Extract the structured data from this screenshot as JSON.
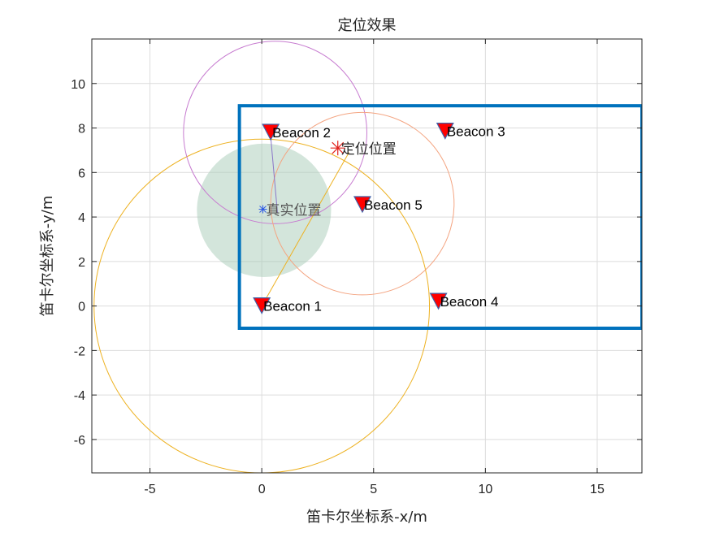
{
  "chart_data": {
    "type": "scatter",
    "title": "定位效果",
    "xlabel": "笛卡尔坐标系-x/m",
    "ylabel": "笛卡尔坐标系-y/m",
    "xlim": [
      -7.6,
      17
    ],
    "ylim": [
      -7.5,
      12
    ],
    "xticks": [
      -5,
      0,
      5,
      10,
      15
    ],
    "yticks": [
      -6,
      -4,
      -2,
      0,
      2,
      4,
      6,
      8,
      10
    ],
    "grid": true,
    "beacons": [
      {
        "label": "Beacon 1",
        "x": 0,
        "y": 0
      },
      {
        "label": "Beacon 2",
        "x": 0.4,
        "y": 7.8
      },
      {
        "label": "Beacon 3",
        "x": 8.2,
        "y": 7.85
      },
      {
        "label": "Beacon 4",
        "x": 7.9,
        "y": 0.2
      },
      {
        "label": "Beacon 5",
        "x": 4.5,
        "y": 4.55
      }
    ],
    "circles": [
      {
        "cx": 0,
        "cy": 0,
        "r": 7.5,
        "color": "#EDB120"
      },
      {
        "cx": 0.6,
        "cy": 7.8,
        "r": 4.1,
        "color": "#C77CD0"
      },
      {
        "cx": 4.5,
        "cy": 4.6,
        "r": 4.1,
        "color": "#F4A582"
      }
    ],
    "region": {
      "x": [
        -1,
        17
      ],
      "y": [
        -1,
        9
      ],
      "color": "#0072BD"
    },
    "uncertainty_disk": {
      "cx": 0.1,
      "cy": 4.3,
      "r": 3.0,
      "color": "#A8CBB7"
    },
    "estimated": {
      "label": "定位位置",
      "x": 3.4,
      "y": 7.1,
      "color": "#E0201B"
    },
    "true_position": {
      "label": "真实位置",
      "x": 0.05,
      "y": 4.35,
      "color": "#2E5BE6"
    },
    "connectors": [
      {
        "from": [
          0,
          0
        ],
        "to": [
          3.9,
          6.9
        ],
        "color": "#EDB120"
      },
      {
        "from": [
          0.4,
          7.6
        ],
        "to": [
          0.7,
          4.2
        ],
        "color": "#8A76C8"
      }
    ]
  }
}
